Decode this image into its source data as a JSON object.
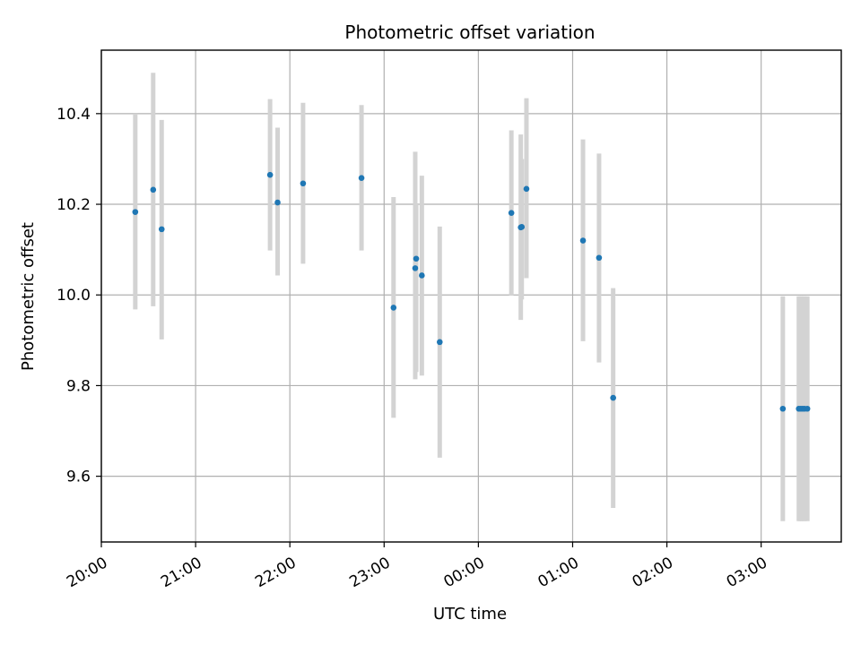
{
  "chart_data": {
    "type": "scatter",
    "title": "Photometric offset variation",
    "xlabel": "UTC time",
    "ylabel": "Photometric offset",
    "grid": true,
    "legend": "none",
    "x_unit": "hours since 20:00 UTC",
    "xlim": [
      0,
      7.85
    ],
    "ylim": [
      9.455,
      10.54
    ],
    "x_ticks": [
      {
        "value": 0,
        "label": "20:00"
      },
      {
        "value": 1,
        "label": "21:00"
      },
      {
        "value": 2,
        "label": "22:00"
      },
      {
        "value": 3,
        "label": "23:00"
      },
      {
        "value": 4,
        "label": "00:00"
      },
      {
        "value": 5,
        "label": "01:00"
      },
      {
        "value": 6,
        "label": "02:00"
      },
      {
        "value": 7,
        "label": "03:00"
      }
    ],
    "y_ticks": [
      {
        "value": 9.6,
        "label": "9.6"
      },
      {
        "value": 9.8,
        "label": "9.8"
      },
      {
        "value": 10.0,
        "label": "10.0"
      },
      {
        "value": 10.2,
        "label": "10.2"
      },
      {
        "value": 10.4,
        "label": "10.4"
      }
    ],
    "colors": {
      "points": "#1f77b4",
      "errorbars": "#d3d3d3",
      "grid": "#b0b0b0"
    },
    "points": [
      {
        "x": 0.36,
        "y": 10.183,
        "lo": 9.968,
        "hi": 10.4
      },
      {
        "x": 0.55,
        "y": 10.232,
        "lo": 9.975,
        "hi": 10.49
      },
      {
        "x": 0.64,
        "y": 10.145,
        "lo": 9.902,
        "hi": 10.386
      },
      {
        "x": 1.79,
        "y": 10.265,
        "lo": 10.098,
        "hi": 10.432
      },
      {
        "x": 1.87,
        "y": 10.204,
        "lo": 10.043,
        "hi": 10.369
      },
      {
        "x": 2.14,
        "y": 10.246,
        "lo": 10.069,
        "hi": 10.424
      },
      {
        "x": 2.76,
        "y": 10.258,
        "lo": 10.098,
        "hi": 10.419
      },
      {
        "x": 3.1,
        "y": 9.972,
        "lo": 9.729,
        "hi": 10.216
      },
      {
        "x": 3.33,
        "y": 10.059,
        "lo": 9.814,
        "hi": 10.316
      },
      {
        "x": 3.34,
        "y": 10.08,
        "lo": 9.83,
        "hi": 10.2
      },
      {
        "x": 3.4,
        "y": 10.043,
        "lo": 9.822,
        "hi": 10.263
      },
      {
        "x": 3.59,
        "y": 9.896,
        "lo": 9.641,
        "hi": 10.151
      },
      {
        "x": 4.35,
        "y": 10.181,
        "lo": 9.999,
        "hi": 10.363
      },
      {
        "x": 4.45,
        "y": 10.149,
        "lo": 9.945,
        "hi": 10.354
      },
      {
        "x": 4.46,
        "y": 10.15,
        "lo": 9.99,
        "hi": 10.3
      },
      {
        "x": 4.51,
        "y": 10.234,
        "lo": 10.037,
        "hi": 10.434
      },
      {
        "x": 5.11,
        "y": 10.12,
        "lo": 9.898,
        "hi": 10.343
      },
      {
        "x": 5.28,
        "y": 10.082,
        "lo": 9.851,
        "hi": 10.312
      },
      {
        "x": 5.43,
        "y": 9.773,
        "lo": 9.53,
        "hi": 10.015
      },
      {
        "x": 7.23,
        "y": 9.749,
        "lo": 9.501,
        "hi": 9.997
      },
      {
        "x": 7.4,
        "y": 9.749,
        "lo": 9.501,
        "hi": 9.997
      },
      {
        "x": 7.42,
        "y": 9.749,
        "lo": 9.501,
        "hi": 9.997
      },
      {
        "x": 7.44,
        "y": 9.749,
        "lo": 9.501,
        "hi": 9.997
      },
      {
        "x": 7.46,
        "y": 9.749,
        "lo": 9.501,
        "hi": 9.997
      },
      {
        "x": 7.49,
        "y": 9.749,
        "lo": 9.501,
        "hi": 9.997
      }
    ]
  }
}
